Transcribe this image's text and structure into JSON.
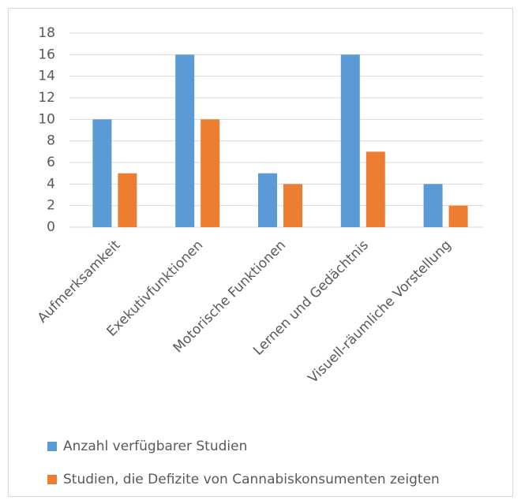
{
  "chart_data": {
    "type": "bar",
    "categories": [
      "Aufmerksamkeit",
      "Exekutivfunktionen",
      "Motorische Funktionen",
      "Lernen und Gedächtnis",
      "Visuell-räumliche Vorstellung"
    ],
    "series": [
      {
        "name": "Anzahl verfügbarer Studien",
        "color": "#5b9bd5",
        "values": [
          10,
          16,
          5,
          16,
          4
        ]
      },
      {
        "name": "Studien, die Defizite von Cannabiskonsumenten zeigten",
        "color": "#ed7d31",
        "values": [
          5,
          10,
          4,
          7,
          2
        ]
      }
    ],
    "ylim": [
      0,
      18
    ],
    "yticks": [
      0,
      2,
      4,
      6,
      8,
      10,
      12,
      14,
      16,
      18
    ],
    "grid": true,
    "legend": "bottom"
  }
}
